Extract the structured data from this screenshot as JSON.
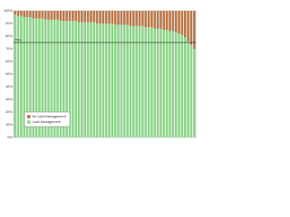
{
  "chart_data": {
    "type": "stacked_bar",
    "categories": [
      null,
      null,
      null,
      null,
      null,
      null,
      null,
      null,
      null,
      null,
      null,
      null,
      null,
      null,
      null,
      null,
      null,
      null,
      null,
      null,
      null,
      null,
      null,
      null,
      null,
      null,
      null,
      null,
      null,
      null,
      null,
      null,
      null,
      null,
      null,
      null,
      null,
      null,
      null,
      null,
      null,
      null,
      null,
      null,
      null,
      null,
      null,
      null,
      null,
      null,
      null,
      null,
      null,
      null,
      null,
      null,
      null,
      null,
      null,
      null
    ],
    "series": [
      {
        "name": "Lipid Management",
        "color": "#8dd48a",
        "values": [
          97,
          96,
          96,
          95,
          95,
          95,
          94,
          94,
          94,
          94,
          93,
          93,
          93,
          93,
          93,
          92,
          92,
          92,
          92,
          92,
          92,
          91,
          91,
          91,
          91,
          91,
          91,
          90,
          90,
          90,
          90,
          90,
          90,
          89,
          89,
          89,
          89,
          89,
          88,
          88,
          88,
          88,
          88,
          87,
          87,
          87,
          86,
          86,
          86,
          85,
          85,
          84,
          84,
          83,
          82,
          81,
          79,
          76,
          73,
          70
        ]
      },
      {
        "name": "No Lipid Management",
        "color": "#b87648",
        "values": [
          3,
          4,
          4,
          5,
          5,
          5,
          6,
          6,
          6,
          6,
          7,
          7,
          7,
          7,
          7,
          8,
          8,
          8,
          8,
          8,
          8,
          9,
          9,
          9,
          9,
          9,
          9,
          10,
          10,
          10,
          10,
          10,
          10,
          11,
          11,
          11,
          11,
          11,
          12,
          12,
          12,
          12,
          12,
          13,
          13,
          13,
          14,
          14,
          14,
          15,
          15,
          16,
          16,
          17,
          18,
          19,
          21,
          24,
          27,
          30
        ]
      }
    ],
    "ylim": [
      0,
      100
    ],
    "yticks": [
      {
        "value": 0,
        "label": "0%"
      },
      {
        "value": 10,
        "label": "10%"
      },
      {
        "value": 20,
        "label": "20%"
      },
      {
        "value": 30,
        "label": "30%"
      },
      {
        "value": 40,
        "label": "40%"
      },
      {
        "value": 50,
        "label": "50%"
      },
      {
        "value": 60,
        "label": "60%"
      },
      {
        "value": 70,
        "label": "70%"
      },
      {
        "value": 80,
        "label": "80%"
      },
      {
        "value": 90,
        "label": "90%"
      },
      {
        "value": 100,
        "label": "100%"
      }
    ],
    "reference_line": {
      "value": 75,
      "label": "75%"
    },
    "legend": "lower left"
  }
}
